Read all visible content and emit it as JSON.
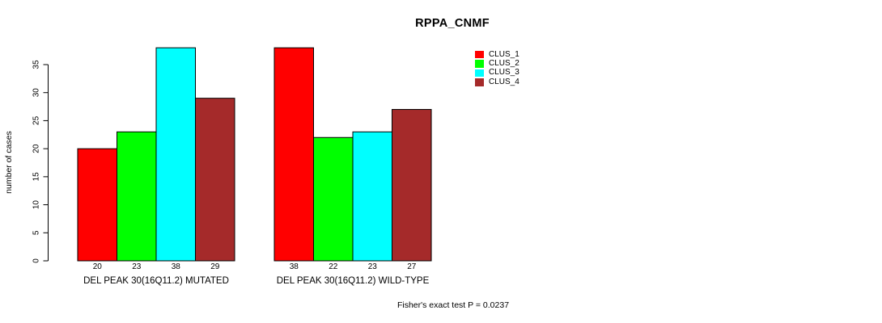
{
  "chart_data": {
    "type": "bar",
    "title": "RPPA_CNMF",
    "ylabel": "number of cases",
    "xlabel": "",
    "ylim": [
      0,
      38
    ],
    "yticks": [
      0,
      5,
      10,
      15,
      20,
      25,
      30,
      35
    ],
    "grid": false,
    "bar_value_labels": true,
    "categories": [
      "DEL PEAK 30(16Q11.2) MUTATED",
      "DEL PEAK 30(16Q11.2) WILD-TYPE"
    ],
    "series": [
      {
        "name": "CLUS_1",
        "color": "#ff0000",
        "values": [
          20,
          38
        ]
      },
      {
        "name": "CLUS_2",
        "color": "#00ff00",
        "values": [
          23,
          22
        ]
      },
      {
        "name": "CLUS_3",
        "color": "#00ffff",
        "values": [
          38,
          23
        ]
      },
      {
        "name": "CLUS_4",
        "color": "#a52a2a",
        "values": [
          29,
          27
        ]
      }
    ],
    "legend": {
      "position": "right",
      "entries": [
        "CLUS_1",
        "CLUS_2",
        "CLUS_3",
        "CLUS_4"
      ]
    },
    "annotation": "Fisher's exact test P = 0.0237"
  }
}
